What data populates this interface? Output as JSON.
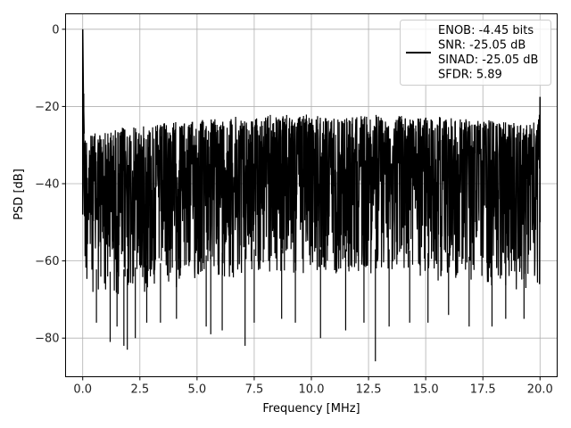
{
  "chart_data": {
    "type": "line",
    "title": "",
    "xlabel": "Frequency [MHz]",
    "ylabel": "PSD [dB]",
    "xlim": [
      -0.75,
      20.75
    ],
    "ylim": [
      -90,
      4
    ],
    "xticks": [
      0.0,
      2.5,
      5.0,
      7.5,
      10.0,
      12.5,
      15.0,
      17.5,
      20.0
    ],
    "xtick_labels": [
      "0.0",
      "2.5",
      "5.0",
      "7.5",
      "10.0",
      "12.5",
      "15.0",
      "17.5",
      "20.0"
    ],
    "yticks": [
      0,
      -20,
      -40,
      -60,
      -80
    ],
    "ytick_labels": [
      "0",
      "−20",
      "−40",
      "−60",
      "−80"
    ],
    "grid": true,
    "legend_position": "top-right",
    "series": [
      {
        "name": "ENOB: -4.45 bits\nSNR: -25.05 dB\nSINAD: -25.05 dB\nSFDR: 5.89",
        "color": "#000000",
        "description_values": {
          "peak_at_dc_db": 0,
          "peak_upper_envelope_db": [
            -26,
            -22
          ],
          "lower_envelope_db": [
            -60,
            -75
          ],
          "deepest_nulls_db": [
            -83,
            -86
          ]
        },
        "envelope": {
          "x": [
            0.0,
            0.1,
            0.5,
            1.0,
            2.0,
            3.0,
            4.0,
            5.0,
            6.0,
            7.0,
            8.0,
            9.0,
            10.0,
            11.0,
            12.0,
            13.0,
            14.0,
            15.0,
            16.0,
            17.0,
            18.0,
            19.0,
            19.9,
            20.0
          ],
          "upper": [
            0.0,
            -27,
            -26.5,
            -26,
            -25,
            -24.5,
            -24,
            -23,
            -23,
            -22.5,
            -22,
            -22,
            -22,
            -22,
            -22,
            -22,
            -22,
            -22,
            -22.5,
            -23,
            -23.5,
            -24,
            -24,
            -17.5
          ],
          "lower": [
            -48,
            -65,
            -68,
            -69,
            -68,
            -67,
            -66,
            -65,
            -64,
            -63,
            -63,
            -63,
            -63,
            -63,
            -63,
            -63,
            -63,
            -64,
            -64,
            -65,
            -66,
            -66,
            -67,
            -50
          ]
        },
        "nulls": [
          {
            "x": 0.6,
            "y": -76
          },
          {
            "x": 1.2,
            "y": -81
          },
          {
            "x": 1.5,
            "y": -77
          },
          {
            "x": 1.8,
            "y": -82
          },
          {
            "x": 1.95,
            "y": -83
          },
          {
            "x": 2.3,
            "y": -80
          },
          {
            "x": 2.8,
            "y": -76
          },
          {
            "x": 3.4,
            "y": -76
          },
          {
            "x": 4.1,
            "y": -75
          },
          {
            "x": 5.4,
            "y": -77
          },
          {
            "x": 5.6,
            "y": -79
          },
          {
            "x": 6.1,
            "y": -78
          },
          {
            "x": 7.1,
            "y": -82
          },
          {
            "x": 7.5,
            "y": -76
          },
          {
            "x": 8.7,
            "y": -75
          },
          {
            "x": 9.3,
            "y": -76
          },
          {
            "x": 10.4,
            "y": -80
          },
          {
            "x": 11.5,
            "y": -78
          },
          {
            "x": 12.3,
            "y": -76
          },
          {
            "x": 12.8,
            "y": -86
          },
          {
            "x": 13.4,
            "y": -77
          },
          {
            "x": 14.3,
            "y": -76
          },
          {
            "x": 15.1,
            "y": -76
          },
          {
            "x": 16.0,
            "y": -74
          },
          {
            "x": 16.9,
            "y": -77
          },
          {
            "x": 17.9,
            "y": -77
          },
          {
            "x": 18.5,
            "y": -75
          },
          {
            "x": 19.3,
            "y": -75
          }
        ]
      }
    ]
  }
}
